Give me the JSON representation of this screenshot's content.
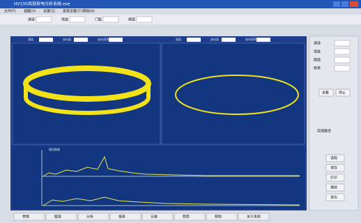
{
  "window": {
    "title": "HV100局部放电分析系统.exe"
  },
  "menu": [
    "文件(F)",
    "视图(V)",
    "设置(S)",
    "系统设置(Y)",
    "帮助(H)"
  ],
  "toolbar": [
    "通道",
    "增益",
    "门槛",
    "阈值"
  ],
  "panels": {
    "left_info": [
      "通道",
      "放电量",
      "放电频率"
    ],
    "right_info": [
      "通道",
      "放电量",
      "放电频率"
    ],
    "spectrum_label": "相位图谱"
  },
  "side": {
    "fields": [
      "通道",
      "增益",
      "阈值",
      "频率"
    ],
    "buttons": [
      "采集",
      "停止"
    ],
    "section": "存储路径",
    "actions": [
      "读取",
      "保存",
      "打印",
      "播放",
      "退出"
    ]
  },
  "tabs": [
    "参数",
    "图谱",
    "分析",
    "报表",
    "记录",
    "趋势",
    "帮助",
    "关于系统"
  ]
}
